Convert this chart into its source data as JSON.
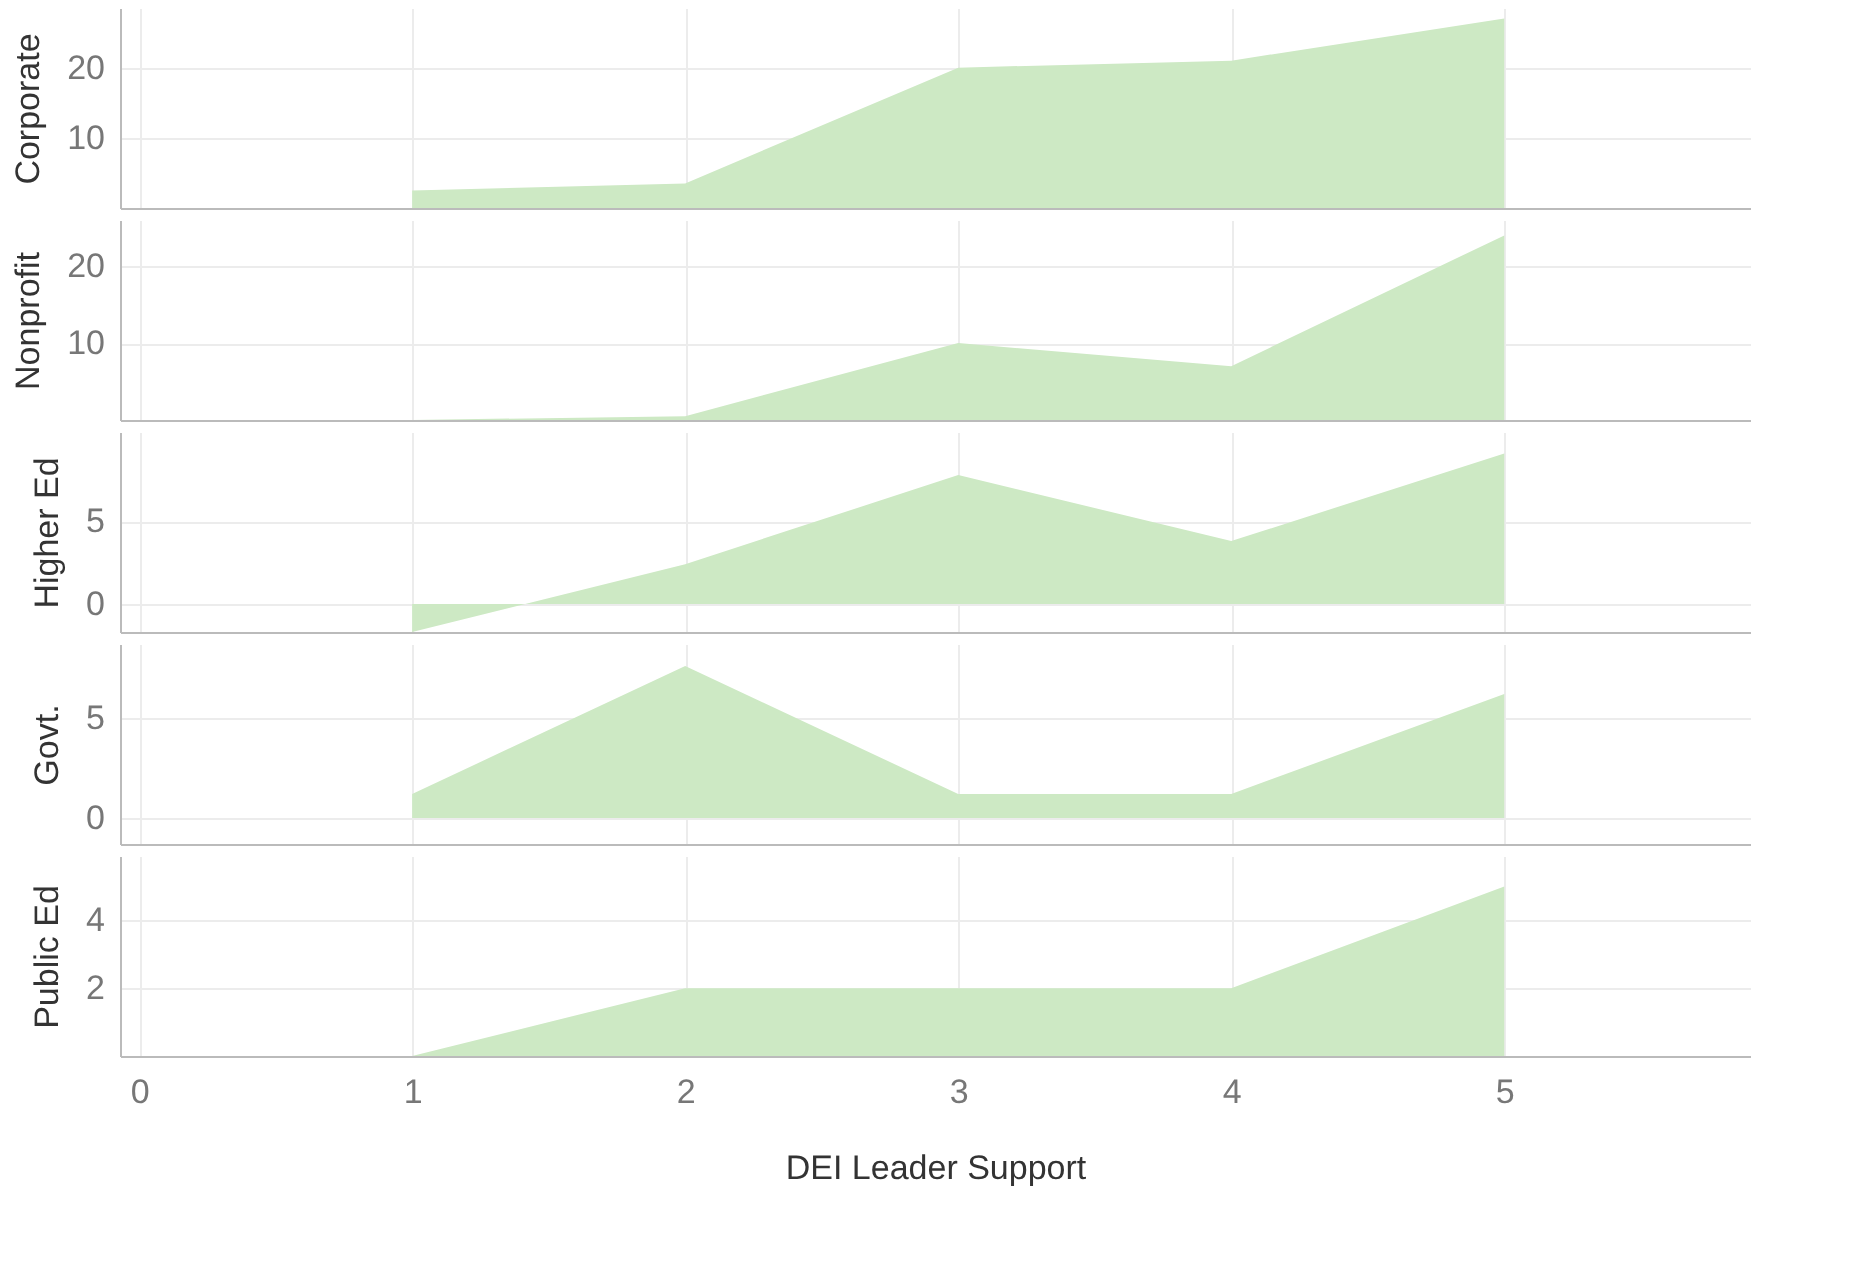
{
  "chart_data": [
    {
      "type": "area",
      "ylabel": "Corporate",
      "x": [
        1,
        2,
        3,
        4,
        5
      ],
      "values": [
        2.5,
        3.5,
        20,
        21,
        27
      ],
      "color": "#cde9c4",
      "xlim": [
        -0.07,
        5.9
      ],
      "xticks": [
        0,
        1,
        2,
        3,
        4,
        5
      ],
      "ylim": [
        0,
        28.5
      ],
      "yticks": [
        10,
        20
      ],
      "grid": true,
      "tick_labels": "y"
    },
    {
      "type": "area",
      "ylabel": "Nonprofit",
      "x": [
        1,
        2,
        3,
        4,
        5
      ],
      "values": [
        0,
        0.5,
        10,
        7,
        24
      ],
      "color": "#cde9c4",
      "xlim": [
        -0.07,
        5.9
      ],
      "xticks": [
        0,
        1,
        2,
        3,
        4,
        5
      ],
      "ylim": [
        0,
        26
      ],
      "yticks": [
        10,
        20
      ],
      "grid": true,
      "tick_labels": "y"
    },
    {
      "type": "area",
      "ylabel": "Higher Ed",
      "x": [
        1,
        2,
        3,
        4,
        5
      ],
      "values": [
        -1.7,
        2.4,
        7.8,
        3.8,
        9.1
      ],
      "color": "#cde9c4",
      "xlim": [
        -0.07,
        5.9
      ],
      "xticks": [
        0,
        1,
        2,
        3,
        4,
        5
      ],
      "ylim": [
        -1.7,
        10.4
      ],
      "yticks": [
        0,
        5
      ],
      "grid": true,
      "tick_labels": "y"
    },
    {
      "type": "area",
      "ylabel": "Govt.",
      "x": [
        1,
        2,
        3,
        4,
        5
      ],
      "values": [
        1.2,
        7.6,
        1.2,
        1.2,
        6.2
      ],
      "color": "#cde9c4",
      "xlim": [
        -0.07,
        5.9
      ],
      "xticks": [
        0,
        1,
        2,
        3,
        4,
        5
      ],
      "ylim": [
        -1.3,
        8.7
      ],
      "yticks": [
        0,
        5
      ],
      "grid": true,
      "tick_labels": "y"
    },
    {
      "type": "area",
      "ylabel": "Public Ed",
      "xlabel": "DEI Leader Support",
      "x": [
        1,
        2,
        3,
        4,
        5
      ],
      "values": [
        0,
        2,
        2,
        2,
        5
      ],
      "color": "#cde9c4",
      "xlim": [
        -0.07,
        5.9
      ],
      "xticks": [
        0,
        1,
        2,
        3,
        4,
        5
      ],
      "ylim": [
        0,
        5.9
      ],
      "yticks": [
        2,
        4
      ],
      "grid": true
    }
  ]
}
